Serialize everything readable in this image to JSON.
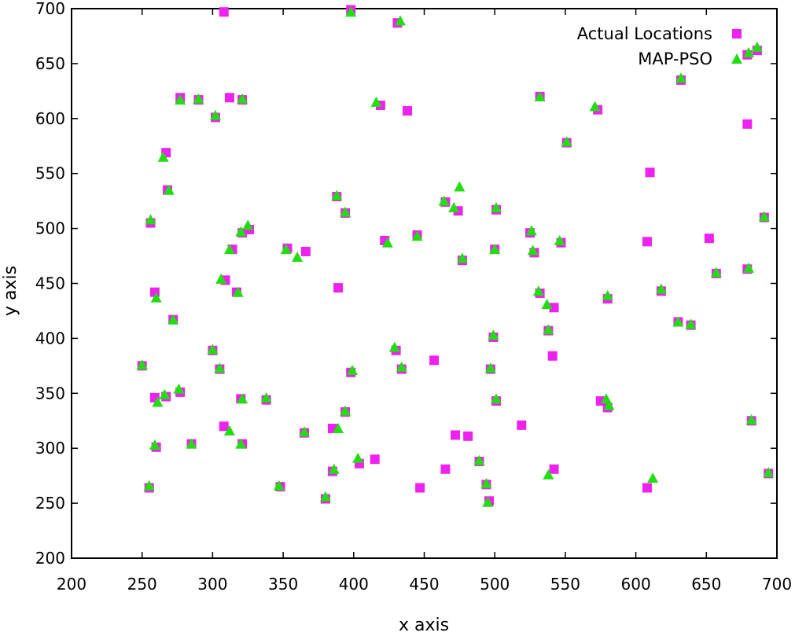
{
  "chart_data": {
    "type": "scatter",
    "xlabel": "x axis",
    "ylabel": "y axis",
    "xlim": [
      200,
      700
    ],
    "ylim": [
      200,
      700
    ],
    "x_ticks": [
      "200",
      "250",
      "300",
      "350",
      "400",
      "450",
      "500",
      "550",
      "600",
      "650",
      "700"
    ],
    "y_ticks": [
      "200",
      "250",
      "300",
      "350",
      "400",
      "450",
      "500",
      "550",
      "600",
      "650",
      "700"
    ],
    "grid": false,
    "legend_position": "top-right",
    "series": [
      {
        "name": "Actual Locations",
        "marker": "square",
        "color": "#ee22ee",
        "points": [
          [
            308,
            697
          ],
          [
            398,
            699
          ],
          [
            431,
            687
          ],
          [
            686,
            662
          ],
          [
            679,
            658
          ],
          [
            632,
            635
          ],
          [
            277,
            619
          ],
          [
            290,
            617
          ],
          [
            312,
            619
          ],
          [
            321,
            617
          ],
          [
            532,
            620
          ],
          [
            419,
            612
          ],
          [
            438,
            607
          ],
          [
            302,
            601
          ],
          [
            573,
            608
          ],
          [
            679,
            595
          ],
          [
            551,
            578
          ],
          [
            267,
            569
          ],
          [
            610,
            551
          ],
          [
            268,
            535
          ],
          [
            388,
            529
          ],
          [
            465,
            524
          ],
          [
            474,
            516
          ],
          [
            501,
            517
          ],
          [
            394,
            514
          ],
          [
            691,
            510
          ],
          [
            256,
            505
          ],
          [
            326,
            499
          ],
          [
            321,
            496
          ],
          [
            445,
            494
          ],
          [
            525,
            496
          ],
          [
            652,
            491
          ],
          [
            422,
            489
          ],
          [
            547,
            487
          ],
          [
            608,
            488
          ],
          [
            314,
            481
          ],
          [
            353,
            482
          ],
          [
            366,
            479
          ],
          [
            500,
            481
          ],
          [
            528,
            478
          ],
          [
            477,
            471
          ],
          [
            309,
            453
          ],
          [
            389,
            446
          ],
          [
            317,
            442
          ],
          [
            259,
            442
          ],
          [
            532,
            441
          ],
          [
            618,
            443
          ],
          [
            657,
            459
          ],
          [
            679,
            463
          ],
          [
            580,
            436
          ],
          [
            542,
            428
          ],
          [
            272,
            417
          ],
          [
            630,
            415
          ],
          [
            639,
            412
          ],
          [
            538,
            407
          ],
          [
            499,
            401
          ],
          [
            300,
            389
          ],
          [
            430,
            389
          ],
          [
            541,
            384
          ],
          [
            457,
            380
          ],
          [
            250,
            375
          ],
          [
            305,
            372
          ],
          [
            434,
            372
          ],
          [
            398,
            369
          ],
          [
            497,
            372
          ],
          [
            277,
            351
          ],
          [
            267,
            347
          ],
          [
            259,
            346
          ],
          [
            320,
            345
          ],
          [
            338,
            344
          ],
          [
            501,
            343
          ],
          [
            575,
            343
          ],
          [
            580,
            337
          ],
          [
            682,
            325
          ],
          [
            394,
            333
          ],
          [
            308,
            320
          ],
          [
            385,
            318
          ],
          [
            519,
            321
          ],
          [
            365,
            314
          ],
          [
            472,
            312
          ],
          [
            481,
            311
          ],
          [
            321,
            304
          ],
          [
            285,
            304
          ],
          [
            260,
            301
          ],
          [
            489,
            288
          ],
          [
            404,
            286
          ],
          [
            415,
            290
          ],
          [
            465,
            281
          ],
          [
            542,
            281
          ],
          [
            385,
            279
          ],
          [
            694,
            277
          ],
          [
            494,
            267
          ],
          [
            447,
            264
          ],
          [
            348,
            265
          ],
          [
            255,
            264
          ],
          [
            608,
            264
          ],
          [
            380,
            254
          ],
          [
            496,
            252
          ]
        ]
      },
      {
        "name": "MAP-PSO",
        "marker": "triangle",
        "color": "#22dd11",
        "points": [
          [
            398,
            697
          ],
          [
            433,
            689
          ],
          [
            686,
            665
          ],
          [
            632,
            637
          ],
          [
            680,
            660
          ],
          [
            277,
            617
          ],
          [
            290,
            618
          ],
          [
            321,
            618
          ],
          [
            416,
            615
          ],
          [
            532,
            620
          ],
          [
            571,
            611
          ],
          [
            302,
            603
          ],
          [
            551,
            579
          ],
          [
            265,
            565
          ],
          [
            269,
            535
          ],
          [
            388,
            530
          ],
          [
            464,
            525
          ],
          [
            475,
            538
          ],
          [
            471,
            519
          ],
          [
            501,
            519
          ],
          [
            394,
            515
          ],
          [
            691,
            511
          ],
          [
            256,
            508
          ],
          [
            325,
            503
          ],
          [
            320,
            497
          ],
          [
            445,
            493
          ],
          [
            526,
            498
          ],
          [
            424,
            487
          ],
          [
            546,
            489
          ],
          [
            312,
            481
          ],
          [
            352,
            481
          ],
          [
            360,
            474
          ],
          [
            500,
            481
          ],
          [
            527,
            480
          ],
          [
            477,
            473
          ],
          [
            306,
            454
          ],
          [
            260,
            437
          ],
          [
            318,
            442
          ],
          [
            531,
            443
          ],
          [
            618,
            445
          ],
          [
            657,
            460
          ],
          [
            680,
            464
          ],
          [
            580,
            439
          ],
          [
            537,
            431
          ],
          [
            272,
            417
          ],
          [
            630,
            415
          ],
          [
            639,
            413
          ],
          [
            538,
            408
          ],
          [
            499,
            403
          ],
          [
            300,
            390
          ],
          [
            429,
            392
          ],
          [
            250,
            376
          ],
          [
            305,
            373
          ],
          [
            434,
            374
          ],
          [
            399,
            371
          ],
          [
            497,
            373
          ],
          [
            276,
            354
          ],
          [
            266,
            349
          ],
          [
            261,
            342
          ],
          [
            321,
            345
          ],
          [
            338,
            346
          ],
          [
            501,
            345
          ],
          [
            579,
            345
          ],
          [
            581,
            339
          ],
          [
            682,
            326
          ],
          [
            394,
            334
          ],
          [
            312,
            316
          ],
          [
            389,
            318
          ],
          [
            365,
            315
          ],
          [
            320,
            304
          ],
          [
            285,
            304
          ],
          [
            259,
            303
          ],
          [
            489,
            289
          ],
          [
            403,
            291
          ],
          [
            386,
            281
          ],
          [
            538,
            276
          ],
          [
            612,
            273
          ],
          [
            694,
            278
          ],
          [
            494,
            268
          ],
          [
            347,
            266
          ],
          [
            255,
            266
          ],
          [
            380,
            256
          ],
          [
            495,
            251
          ]
        ]
      }
    ]
  }
}
